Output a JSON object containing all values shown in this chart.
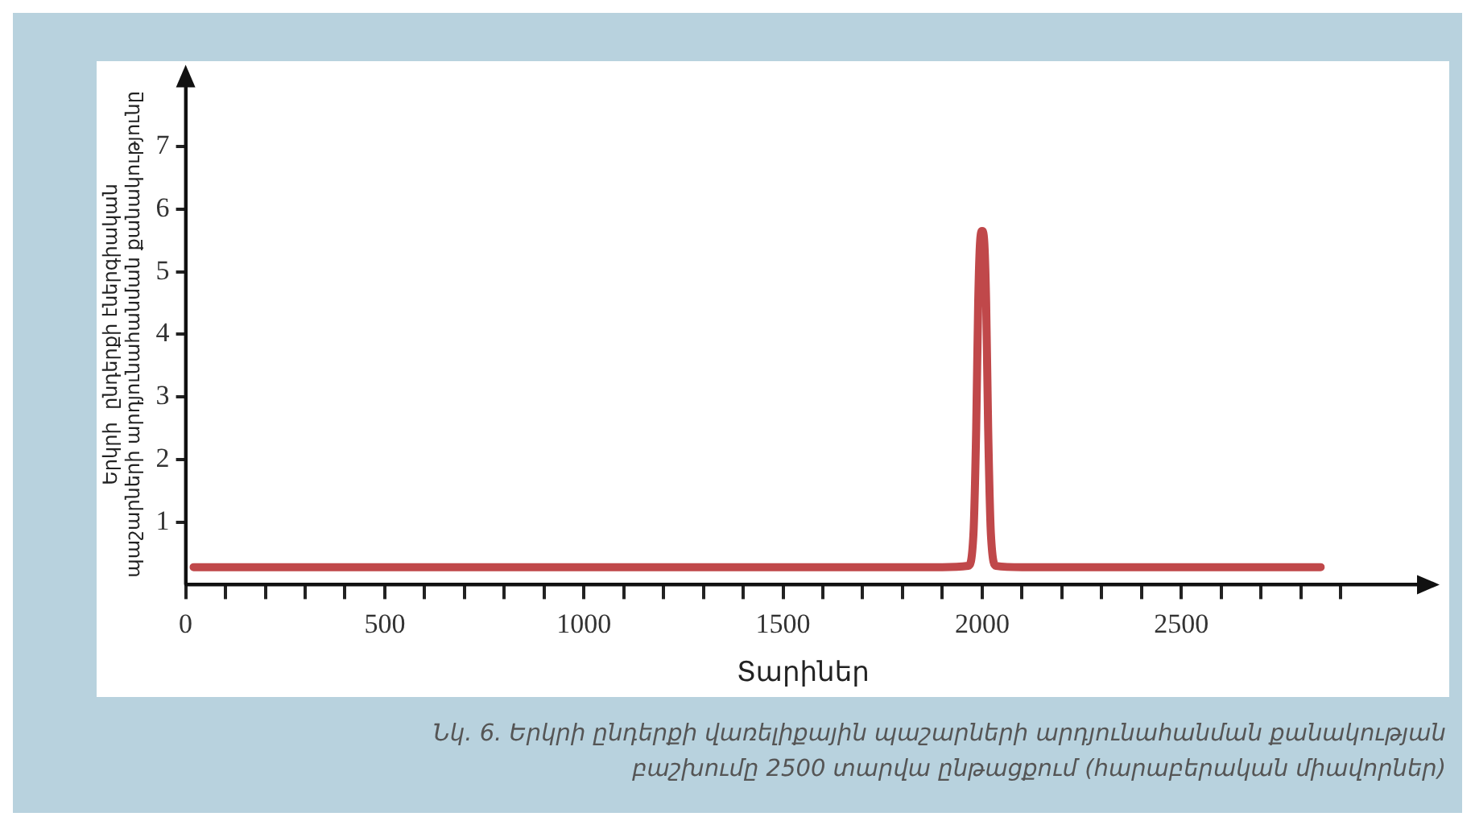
{
  "chart_data": {
    "type": "line",
    "xlabel": "Տարիներ",
    "ylabel": "Երկրի  ընդերքի էներգիական\nպաշարների արդյունահանման քանակությունը",
    "annotations": [
      "Նկ. 6. Երկրի ընդերքի վառելիքային պաշարների արդյունահանման քանակության բաշխումը 2500 տարվա ընթացքում (հարաբերական միավորներ)"
    ],
    "series": [
      {
        "color": "#c0484a",
        "x": [
          20,
          500,
          1000,
          1500,
          1900,
          1965,
          1978,
          1985,
          1990,
          1995,
          2000,
          2005,
          2010,
          2015,
          2022,
          2035,
          2100,
          2500,
          2850
        ],
        "values": [
          0.28,
          0.28,
          0.28,
          0.28,
          0.28,
          0.3,
          0.8,
          2.5,
          4.5,
          5.5,
          5.65,
          5.5,
          4.5,
          2.5,
          0.8,
          0.3,
          0.28,
          0.28,
          0.28
        ]
      }
    ],
    "xlim": [
      0,
      3100
    ],
    "xticks": [
      0,
      {
        "value": 100,
        "label": null
      },
      {
        "value": 200,
        "label": null
      },
      {
        "value": 300,
        "label": null
      },
      {
        "value": 400,
        "label": null
      },
      500,
      {
        "value": 600,
        "label": null
      },
      {
        "value": 700,
        "label": null
      },
      {
        "value": 800,
        "label": null
      },
      {
        "value": 900,
        "label": null
      },
      1000,
      {
        "value": 1100,
        "label": null
      },
      {
        "value": 1200,
        "label": null
      },
      {
        "value": 1300,
        "label": null
      },
      {
        "value": 1400,
        "label": null
      },
      1500,
      {
        "value": 1600,
        "label": null
      },
      {
        "value": 1700,
        "label": null
      },
      {
        "value": 1800,
        "label": null
      },
      {
        "value": 1900,
        "label": null
      },
      2000,
      {
        "value": 2100,
        "label": null
      },
      {
        "value": 2200,
        "label": null
      },
      {
        "value": 2300,
        "label": null
      },
      {
        "value": 2400,
        "label": null
      },
      2500,
      {
        "value": 2600,
        "label": null
      },
      {
        "value": 2700,
        "label": null
      },
      {
        "value": 2800,
        "label": null
      },
      {
        "value": 2900,
        "label": null
      }
    ],
    "ylim": [
      0,
      8
    ],
    "yticks": [
      1,
      2,
      3,
      4,
      5,
      6,
      7
    ],
    "grid": false,
    "legend": false,
    "marker": "none",
    "line_style": "solid"
  }
}
